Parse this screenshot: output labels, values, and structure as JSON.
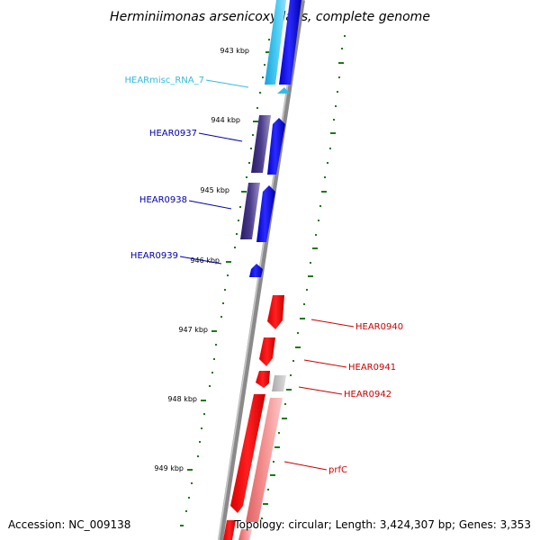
{
  "title": "Herminiimonas arsenicoxydans, complete genome",
  "accession": "Accession: NC_009138",
  "topology": "Topology: circular; Length: 3,424,307 bp; Genes: 3,353",
  "scale_labels": [
    "943 kbp",
    "944 kbp",
    "945 kbp",
    "946 kbp",
    "947 kbp",
    "948 kbp",
    "949 kbp"
  ],
  "gene_labels": [
    {
      "name": "HEARmisc_RNA_7",
      "color": "#33bbdd"
    },
    {
      "name": "HEAR0937",
      "color": "#0000aa"
    },
    {
      "name": "HEAR0938",
      "color": "#0000aa"
    },
    {
      "name": "HEAR0939",
      "color": "#0000aa"
    },
    {
      "name": "HEAR0940",
      "color": "#cc0000"
    },
    {
      "name": "HEAR0941",
      "color": "#cc0000"
    },
    {
      "name": "HEAR0942",
      "color": "#cc0000"
    },
    {
      "name": "prfC",
      "color": "#cc0000"
    }
  ],
  "colors": {
    "backbone": "#8a8a8a",
    "reverse_strand": "#0000ff",
    "reverse_dark": "#3a2a7a",
    "rna": "#22a8e0",
    "forward_strand": "#ff0000",
    "forward_light": "#f08888",
    "grey_feature": "#bbbbbb",
    "ticks": "#1a7a1a"
  }
}
